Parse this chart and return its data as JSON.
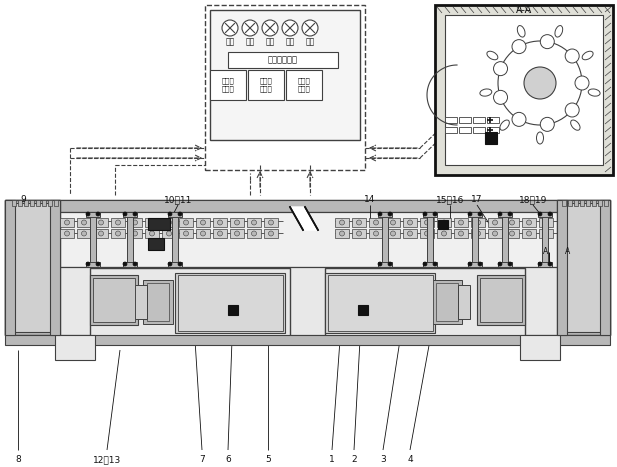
{
  "bg_color": "#ffffff",
  "line_color": "#404040",
  "dark_color": "#111111",
  "gray1": "#d0d0d0",
  "gray2": "#b8b8b8",
  "gray3": "#e8e8e8",
  "hatch_color": "#888888",
  "title_aa": "A-A",
  "indicator_labels": [
    "过松",
    "较松",
    "合远",
    "较紧",
    "过紧"
  ],
  "fusion_label_2": "二级融合中心",
  "fusion_label_1a": "初级融\n合中心",
  "fusion_label_1b": "初级融\n合中心",
  "fusion_label_1c": "初级融\n合中心",
  "label_9": "9",
  "label_8": "8",
  "label_12_13": "12、13",
  "label_10_11": "10、11",
  "label_7": "7",
  "label_6": "6",
  "label_5": "5",
  "label_1": "1",
  "label_2": "2",
  "label_3": "3",
  "label_4": "4",
  "label_14": "14",
  "label_15_16": "15、16",
  "label_17": "17",
  "label_18_19": "18、19"
}
